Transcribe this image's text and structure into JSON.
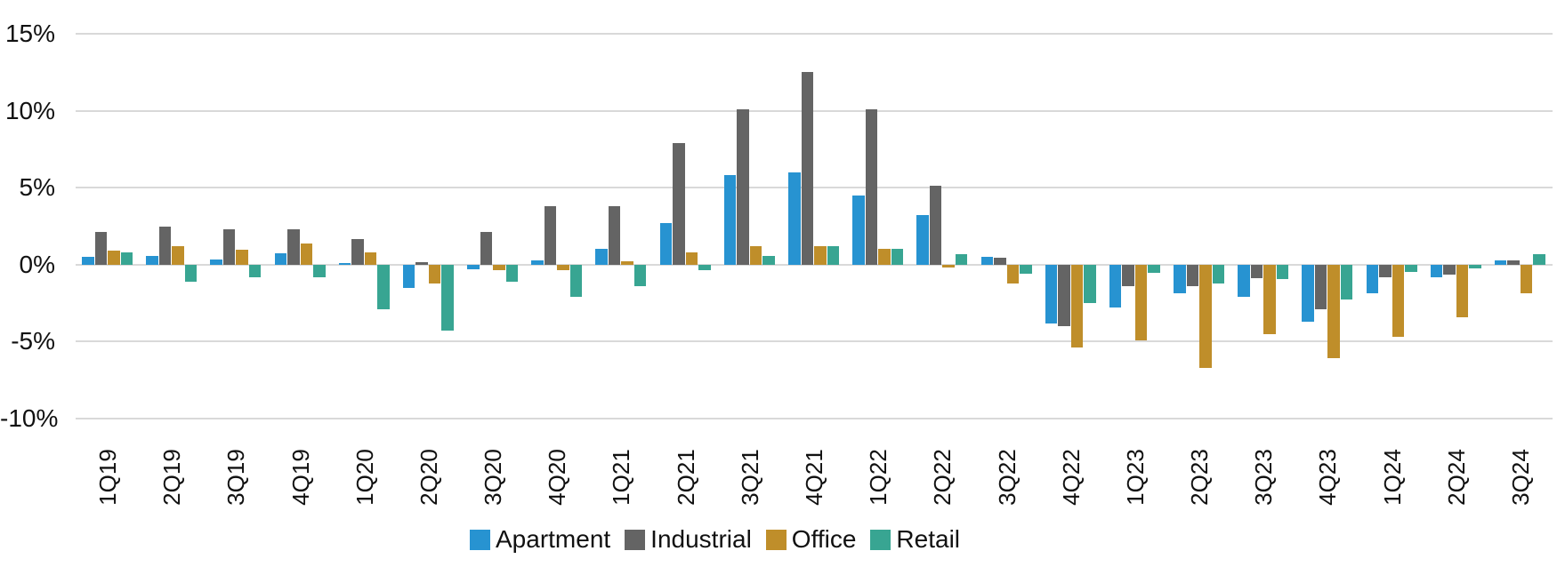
{
  "chart_data": {
    "type": "bar",
    "title": "",
    "xlabel": "",
    "ylabel": "",
    "unit": "%",
    "categories": [
      "1Q19",
      "2Q19",
      "3Q19",
      "4Q19",
      "1Q20",
      "2Q20",
      "3Q20",
      "4Q20",
      "1Q21",
      "2Q21",
      "3Q21",
      "4Q21",
      "1Q22",
      "2Q22",
      "3Q22",
      "4Q22",
      "1Q23",
      "2Q23",
      "3Q23",
      "4Q23",
      "1Q24",
      "2Q24",
      "3Q24"
    ],
    "series": [
      {
        "name": "Apartment",
        "color": "#2793D1",
        "values": [
          0.5,
          0.55,
          0.35,
          0.75,
          0.1,
          -1.5,
          -0.3,
          0.3,
          1.0,
          2.7,
          5.8,
          6.0,
          4.5,
          3.2,
          0.5,
          -3.8,
          -2.8,
          -1.85,
          -2.1,
          -3.7,
          -1.85,
          -0.8,
          0.25
        ]
      },
      {
        "name": "Industrial",
        "color": "#646464",
        "values": [
          2.1,
          2.5,
          2.3,
          2.3,
          1.65,
          0.15,
          2.1,
          3.8,
          3.8,
          7.9,
          10.1,
          12.5,
          10.1,
          5.1,
          0.45,
          -4.0,
          -1.4,
          -1.4,
          -0.9,
          -2.9,
          -0.8,
          -0.65,
          0.3
        ]
      },
      {
        "name": "Office",
        "color": "#BF8E2A",
        "values": [
          0.9,
          1.2,
          0.95,
          1.4,
          0.8,
          -1.2,
          -0.35,
          -0.35,
          0.2,
          0.8,
          1.2,
          1.2,
          1.0,
          -0.2,
          -1.25,
          -5.4,
          -4.9,
          -6.7,
          -4.5,
          -6.1,
          -4.7,
          -3.4,
          -1.85
        ]
      },
      {
        "name": "Retail",
        "color": "#38A592",
        "values": [
          0.8,
          -1.1,
          -0.8,
          -0.8,
          -2.9,
          -4.3,
          -1.1,
          -2.1,
          -1.4,
          -0.35,
          0.55,
          1.2,
          1.0,
          0.7,
          -0.6,
          -2.5,
          -0.55,
          -1.25,
          -0.95,
          -2.25,
          -0.45,
          -0.25,
          0.7
        ]
      }
    ],
    "y_axis": {
      "ylim": [
        -10,
        15
      ],
      "ticks": [
        15,
        10,
        5,
        0,
        -5,
        -10
      ],
      "tick_labels": [
        "15%",
        "10%",
        "5%",
        "0%",
        "-5%",
        "-10%"
      ]
    },
    "grid": true,
    "legend_position": "bottom",
    "x_tick_rotation": -90
  },
  "colors": {
    "background": "#FFFFFF",
    "gridline": "#D9D9D9",
    "text": "#111111"
  }
}
